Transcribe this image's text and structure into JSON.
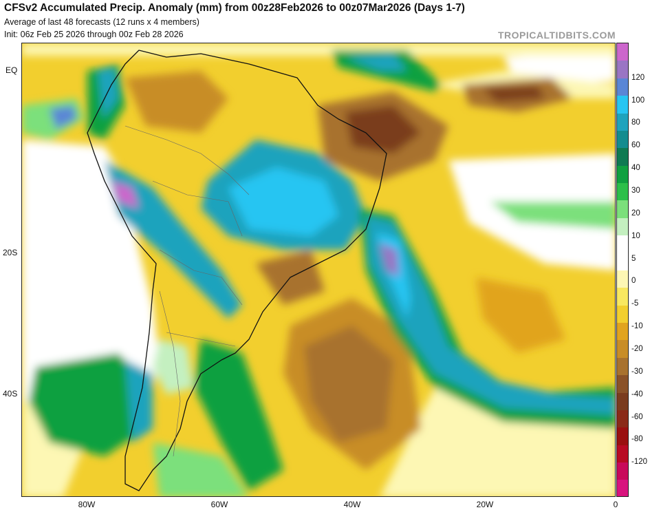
{
  "header": {
    "title": "CFSv2 Accumulated Precip. Anomaly (mm) from 00z28Feb2026 to 00z07Mar2026 (Days 1-7)",
    "subtitle_1": "Average of last 48 forecasts (12 runs x 4 members)",
    "subtitle_2": "Init: 06z Feb 25 2026 through 00z Feb 28 2026",
    "credit": "TROPICALTIDBITS.COM"
  },
  "map": {
    "region": "South America and South Atlantic",
    "latitude_labels": [
      "EQ",
      "20S",
      "40S"
    ],
    "longitude_labels": [
      "80W",
      "60W",
      "40W",
      "20W",
      "0"
    ]
  },
  "colorbar": {
    "unit": "mm",
    "labels": [
      "120",
      "100",
      "80",
      "60",
      "40",
      "30",
      "20",
      "10",
      "5",
      "0",
      "-5",
      "-10",
      "-20",
      "-30",
      "-40",
      "-60",
      "-80",
      "-120"
    ],
    "colors": [
      "#cc66cc",
      "#9a75c4",
      "#5a86d6",
      "#27c5f2",
      "#1fa3bd",
      "#138c8f",
      "#0f7a52",
      "#10a040",
      "#2dbf4a",
      "#7be07b",
      "#c4f0c0",
      "#ffffff",
      "#ffffff",
      "#fdf7b4",
      "#f8e860",
      "#f2cf2e",
      "#e1a41e",
      "#c88d26",
      "#a8722e",
      "#8a5228",
      "#7a3c1e",
      "#8a2a18",
      "#9a1010",
      "#b80b24",
      "#c80a5a",
      "#d8147e"
    ]
  }
}
